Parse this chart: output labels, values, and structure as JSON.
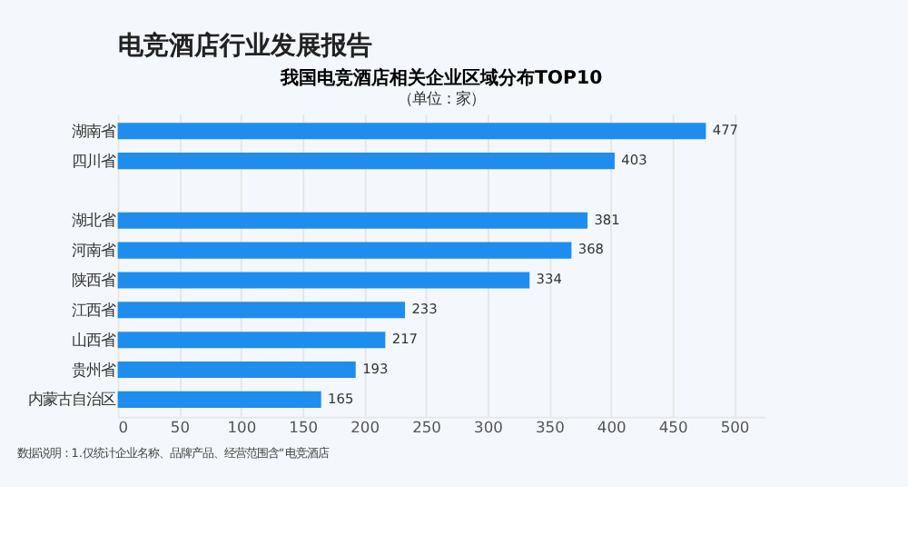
{
  "chart_data": {
    "type": "bar",
    "orientation": "horizontal",
    "title": "电竞酒店行业发展报告",
    "subtitle": "我国电竞酒店相关企业区域分布TOP10\n（单位：家）",
    "categories": [
      "湖南省",
      "四川省",
      null,
      "湖北省",
      "河南省",
      "陕西省",
      "江西省",
      "山西省",
      "贵州省",
      "内蒙古自治区"
    ],
    "values": [
      477,
      403,
      null,
      381,
      368,
      334,
      233,
      217,
      193,
      165
    ],
    "color": "#1f8ded",
    "xlim": [
      0,
      525
    ],
    "xticks": [
      0,
      50,
      100,
      150,
      200,
      250,
      300,
      350,
      400,
      450,
      500
    ],
    "grid": "x",
    "data_labels": true,
    "annotations": [
      "数据说明：1.仅统计企业名称、品牌产品、经营范围含“电竞酒店"
    ]
  }
}
